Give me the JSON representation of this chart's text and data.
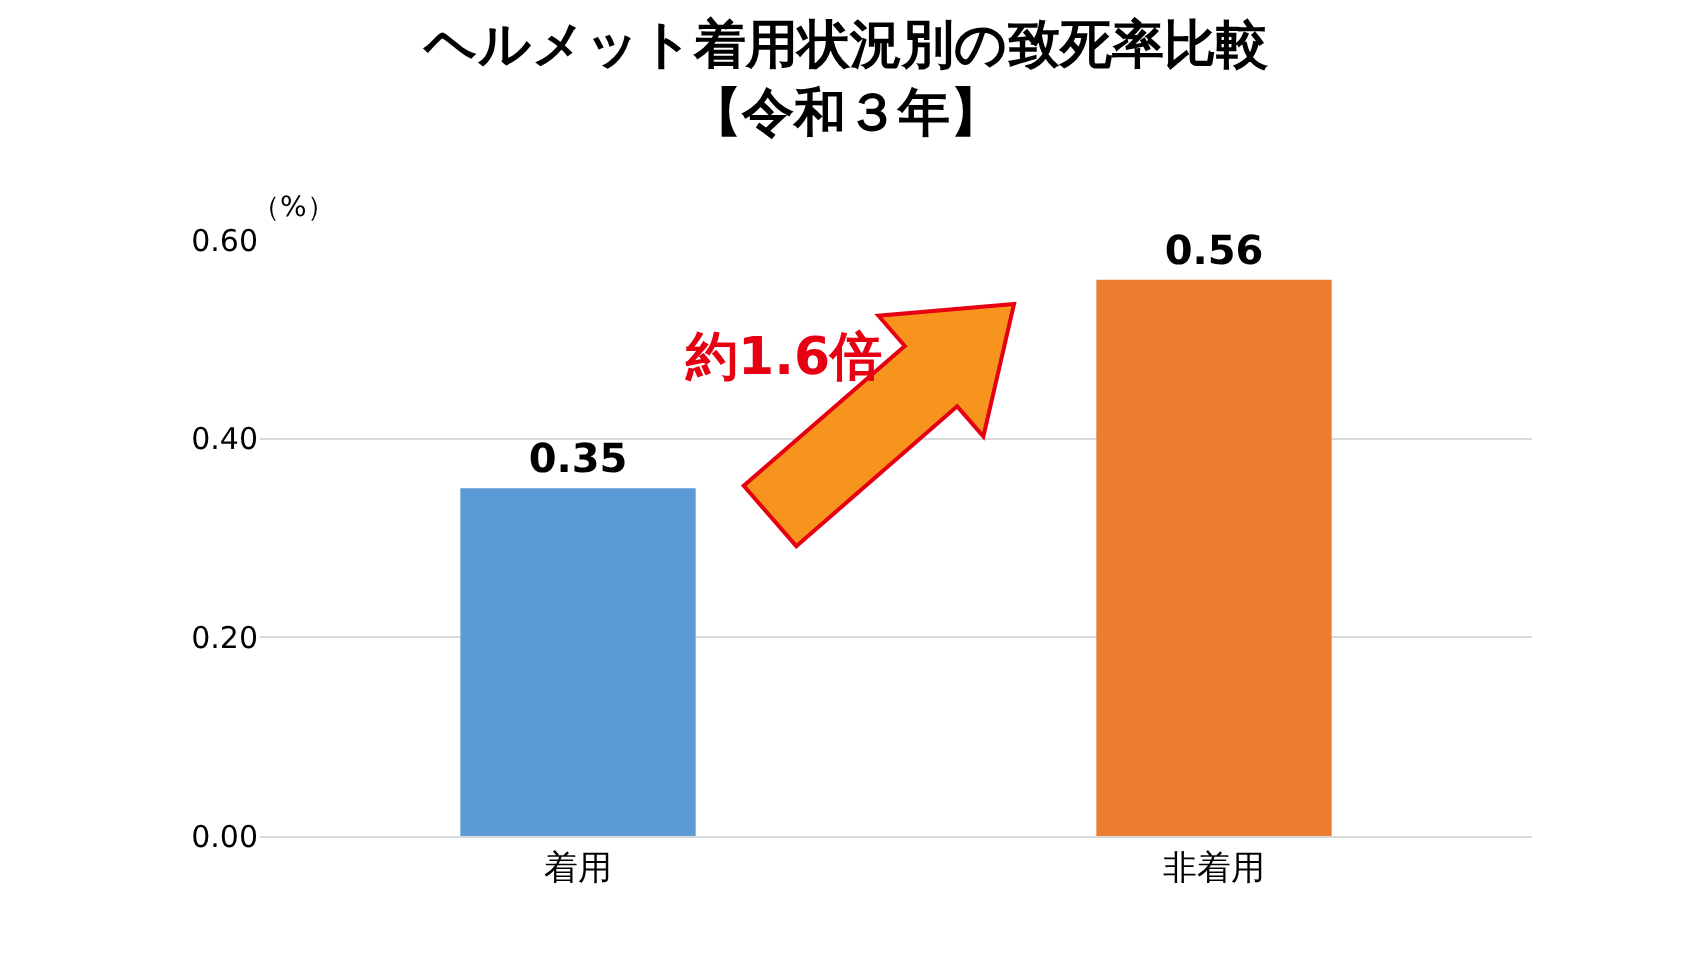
{
  "chart_data": {
    "type": "bar",
    "title": "ヘルメット着用状況別の致死率比較",
    "subtitle": "【令和３年】",
    "ylabel": "（%）",
    "categories": [
      "着用",
      "非着用"
    ],
    "values": [
      0.35,
      0.56
    ],
    "colors": [
      "#5b9bd5",
      "#ed7d31"
    ],
    "data_labels": true,
    "ylim": [
      0,
      0.6
    ],
    "yticks": [
      {
        "value": 0,
        "label": "0.00"
      },
      {
        "value": 0.2,
        "label": "0.20"
      },
      {
        "value": 0.4,
        "label": "0.40"
      },
      {
        "value": 0.6,
        "label": "0.60"
      }
    ],
    "grid": "y",
    "annotations": [
      "約1.6倍"
    ]
  }
}
